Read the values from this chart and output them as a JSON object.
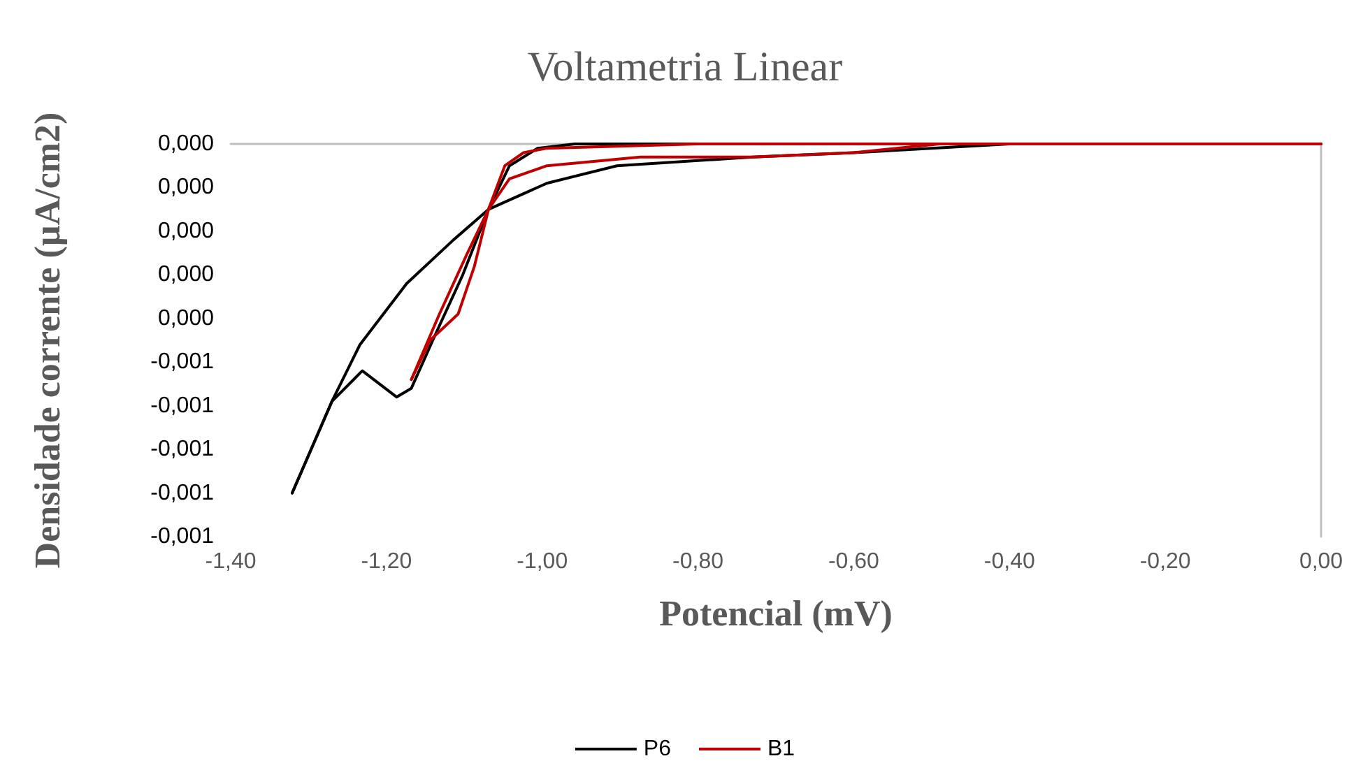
{
  "chart_data": {
    "type": "line",
    "title": "Voltametria Linear",
    "xlabel": "Potencial (mV)",
    "ylabel": "Densidade corrente (µA/cm2)",
    "xlim": [
      -1.4,
      0
    ],
    "ylim": [
      -0.0009,
      0
    ],
    "xticks": [
      {
        "value": -1.4,
        "label": "-1,40"
      },
      {
        "value": -1.2,
        "label": "-1,20"
      },
      {
        "value": -1,
        "label": "-1,00"
      },
      {
        "value": -0.8,
        "label": "-0,80"
      },
      {
        "value": -0.6,
        "label": "-0,60"
      },
      {
        "value": -0.4,
        "label": "-0,40"
      },
      {
        "value": -0.2,
        "label": "-0,20"
      },
      {
        "value": 0,
        "label": "0,00"
      }
    ],
    "yticks": [
      {
        "value": 0,
        "label": "0,000"
      },
      {
        "value": -0.0001,
        "label": "0,000"
      },
      {
        "value": -0.0002,
        "label": "0,000"
      },
      {
        "value": -0.0003,
        "label": "0,000"
      },
      {
        "value": -0.0004,
        "label": "0,000"
      },
      {
        "value": -0.0005,
        "label": "-0,001"
      },
      {
        "value": -0.0006,
        "label": "-0,001"
      },
      {
        "value": -0.0007,
        "label": "-0,001"
      },
      {
        "value": -0.0008,
        "label": "-0,001"
      },
      {
        "value": -0.0009,
        "label": "-0,001"
      }
    ],
    "grid": false,
    "legend": "bottom",
    "marker": "none",
    "line_style": "solid",
    "series": [
      {
        "name": "P6",
        "color": "#000000",
        "x": [
          0,
          -0.2,
          -0.4,
          -0.6,
          -0.8,
          -0.958,
          -1.006,
          -1.042,
          -1.069,
          -1.102,
          -1.138,
          -1.168,
          -1.187,
          -1.231,
          -1.27,
          -1.321
        ],
        "values": [
          0,
          0,
          0,
          0,
          0,
          0,
          -1e-05,
          -5e-05,
          -0.00015,
          -0.0003,
          -0.00044,
          -0.00056,
          -0.00058,
          -0.00052,
          -0.00059,
          -0.0008
        ]
      },
      {
        "color": "#000000",
        "x": [
          -1.321,
          -1.27,
          -1.234,
          -1.174,
          -1.114,
          -1.069,
          -0.994,
          -0.904,
          -0.73,
          -0.6,
          -0.4
        ],
        "values": [
          -0.0008,
          -0.00059,
          -0.00046,
          -0.00032,
          -0.00022,
          -0.00015,
          -9e-05,
          -5e-05,
          -3e-05,
          -2e-05,
          0
        ]
      },
      {
        "name": "B1",
        "color": "#c00000",
        "x": [
          0,
          -0.2,
          -0.4,
          -0.6,
          -0.8,
          -0.995,
          -1.024,
          -1.048,
          -1.069,
          -1.096,
          -1.132,
          -1.168
        ],
        "values": [
          0,
          0,
          0,
          0,
          0,
          -1e-05,
          -2e-05,
          -5e-05,
          -0.00015,
          -0.00025,
          -0.00039,
          -0.00054
        ]
      },
      {
        "color": "#c00000",
        "x": [
          -1.168,
          -1.144,
          -1.126,
          -1.108,
          -1.087,
          -1.069,
          -1.042,
          -0.994,
          -0.874,
          -0.73,
          -0.6,
          -0.49
        ],
        "values": [
          -0.00054,
          -0.00045,
          -0.00042,
          -0.00039,
          -0.00028,
          -0.00015,
          -8e-05,
          -5e-05,
          -3e-05,
          -3e-05,
          -2e-05,
          0
        ]
      }
    ]
  }
}
